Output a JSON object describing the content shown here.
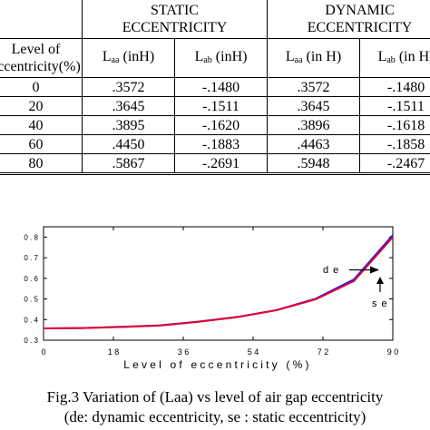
{
  "table": {
    "group_headers": {
      "static": "STATIC\nECCENTRICITY",
      "dynamic": "DYNAMIC\nECCENTRICITY"
    },
    "col_headers": {
      "level": "Level of\neccentricity(%)",
      "static_laa": "(inH)",
      "static_lab": "(inH)",
      "dynamic_laa": "(in H)",
      "dynamic_lab": "(in H)"
    },
    "symbols": {
      "laa_main": "L",
      "laa_sub": "aa",
      "lab_main": "L",
      "lab_sub": "ab"
    },
    "rows": [
      {
        "level": "0",
        "s_laa": ".3572",
        "s_lab": "-.1480",
        "d_laa": ".3572",
        "d_lab": "-.1480"
      },
      {
        "level": "20",
        "s_laa": ".3645",
        "s_lab": "-.1511",
        "d_laa": ".3645",
        "d_lab": "-.1511"
      },
      {
        "level": "40",
        "s_laa": ".3895",
        "s_lab": "-.1620",
        "d_laa": ".3896",
        "d_lab": "-.1618"
      },
      {
        "level": "60",
        "s_laa": ".4450",
        "s_lab": "-.1883",
        "d_laa": ".4463",
        "d_lab": "-.1858"
      },
      {
        "level": "80",
        "s_laa": ".5867",
        "s_lab": "-.2691",
        "d_laa": ".5948",
        "d_lab": "-.2467"
      }
    ]
  },
  "chart_data": {
    "type": "line",
    "xlabel": "Level of eccentricity (%)",
    "ylabel": "",
    "xlim": [
      0,
      90
    ],
    "ylim": [
      0.3,
      0.85
    ],
    "xticks": [
      0,
      18,
      36,
      54,
      72,
      90
    ],
    "xtick_labels": [
      "0",
      "1 8",
      "3 6",
      "5 4",
      "7 2",
      "9 0"
    ],
    "yticks": [
      0.3,
      0.4,
      0.5,
      0.6,
      0.7,
      0.8
    ],
    "ytick_labels": [
      "0 . 3",
      "0 . 4",
      "0 . 5",
      "0 . 6",
      "0 . 7",
      "0 . 8"
    ],
    "series": [
      {
        "name": "de",
        "color": "#1a1aff",
        "x": [
          0,
          10,
          20,
          30,
          40,
          50,
          60,
          70,
          80,
          90
        ],
        "y": [
          0.357,
          0.359,
          0.365,
          0.372,
          0.39,
          0.413,
          0.446,
          0.5,
          0.595,
          0.81
        ]
      },
      {
        "name": "se",
        "color": "#e8002a",
        "x": [
          0,
          10,
          20,
          30,
          40,
          50,
          60,
          70,
          80,
          90
        ],
        "y": [
          0.357,
          0.359,
          0.364,
          0.371,
          0.389,
          0.412,
          0.445,
          0.497,
          0.587,
          0.8
        ]
      }
    ],
    "annotations": [
      "d e",
      "s e"
    ],
    "grid": false,
    "legend": "none"
  },
  "caption": {
    "line1": "Fig.3 Variation of (Laa) vs level of air gap eccentricity",
    "line2": "(de: dynamic eccentricity, se : static eccentricity)"
  }
}
